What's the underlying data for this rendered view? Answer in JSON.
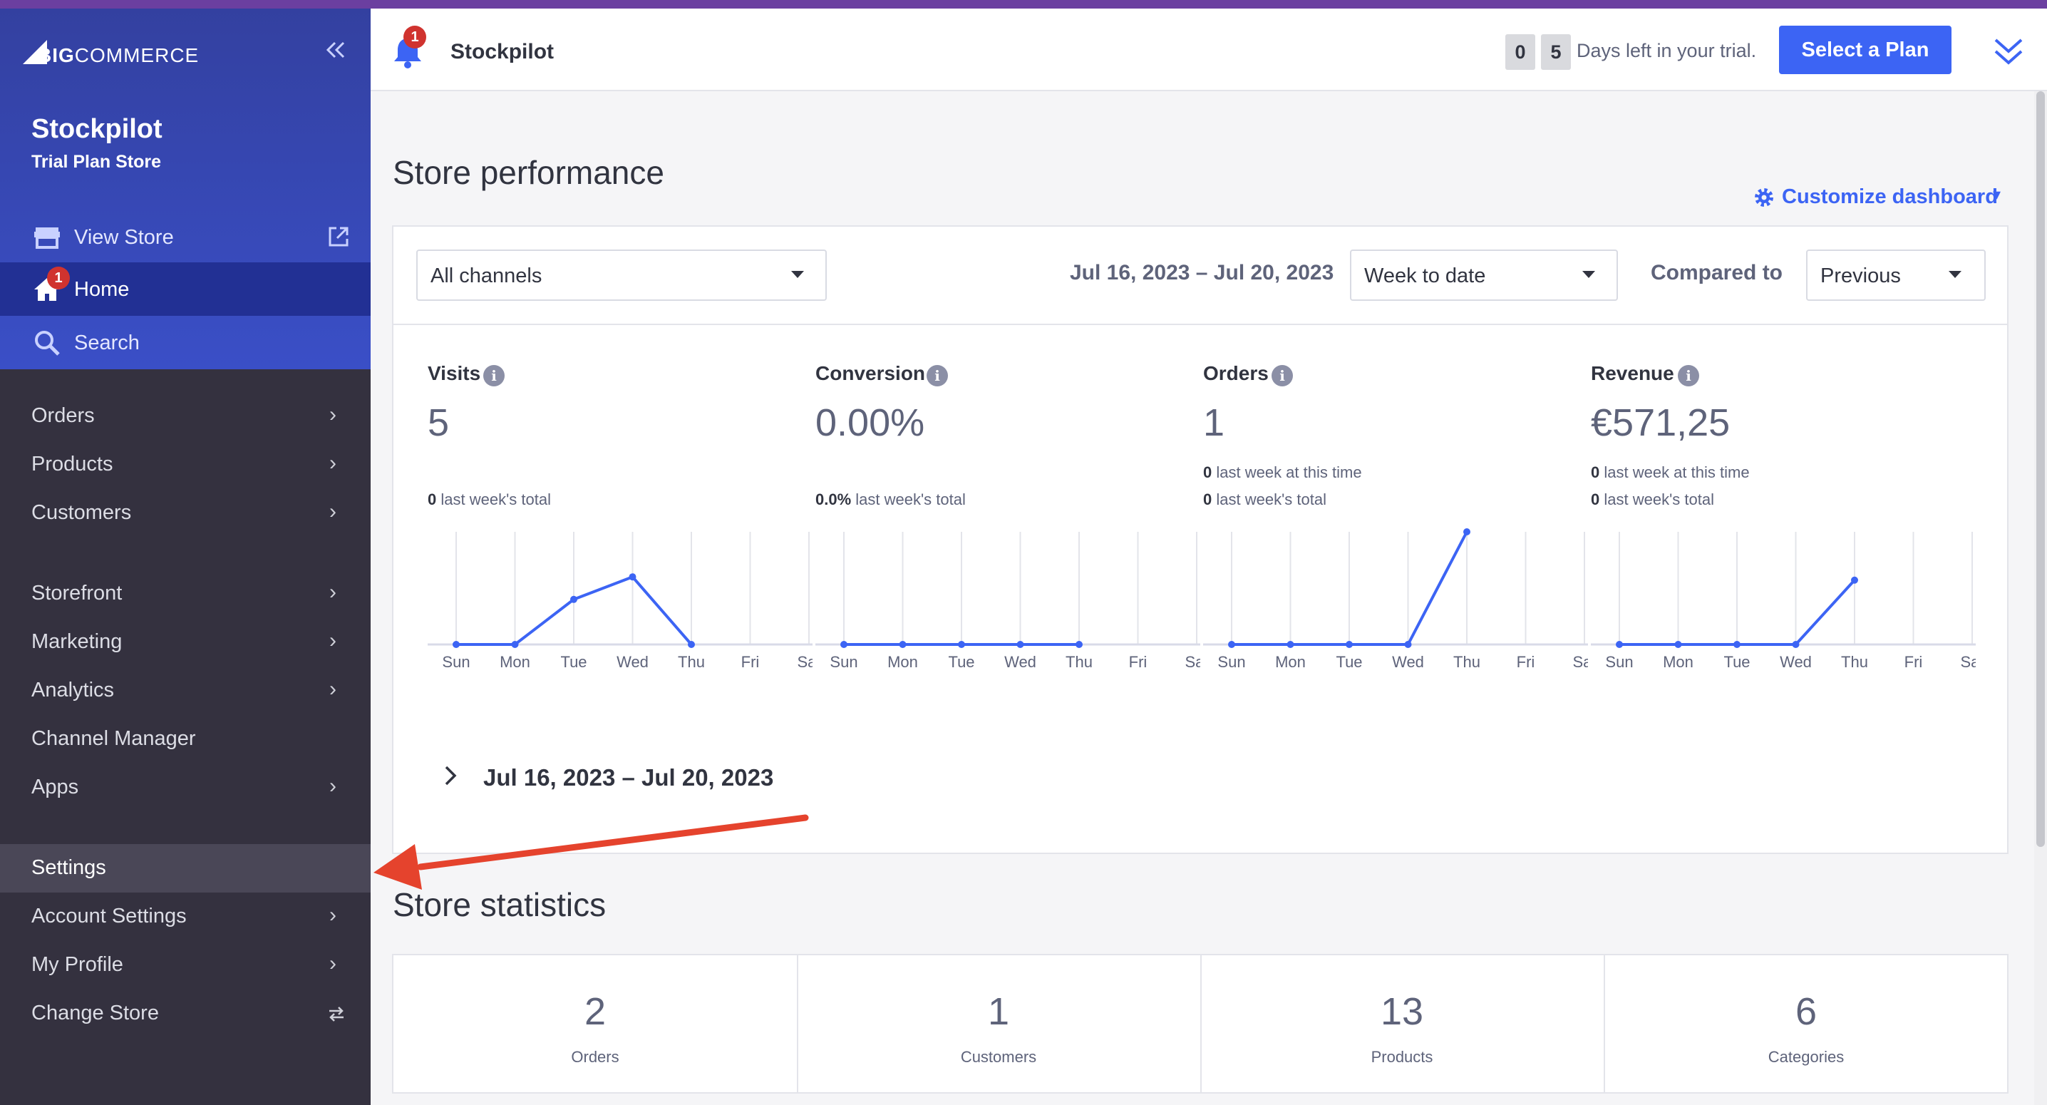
{
  "sidebar": {
    "logo_big": "BIG",
    "logo_rest": "COMMERCE",
    "store_name": "Stockpilot",
    "store_plan": "Trial Plan Store",
    "view_store": "View Store",
    "home": "Home",
    "home_badge": "1",
    "search": "Search",
    "items_group1": [
      "Orders",
      "Products",
      "Customers"
    ],
    "items_group2": [
      "Storefront",
      "Marketing",
      "Analytics",
      "Channel Manager",
      "Apps"
    ],
    "settings": "Settings",
    "items_group3": [
      "Account Settings",
      "My Profile",
      "Change Store"
    ]
  },
  "topbar": {
    "notification_count": "1",
    "store_name": "Stockpilot",
    "trial_digits": [
      "0",
      "5"
    ],
    "trial_text": "Days left in your trial.",
    "select_plan": "Select a Plan"
  },
  "performance": {
    "title": "Store performance",
    "customize": "Customize dashboard",
    "channel": "All channels",
    "date_range": "Jul 16, 2023 – Jul 20, 2023",
    "period": "Week to date",
    "compared_label": "Compared to",
    "compared_value": "Previous",
    "period_summary": "Jul 16, 2023 – Jul 20, 2023"
  },
  "metrics": [
    {
      "label": "Visits",
      "value": "5",
      "subs": [
        {
          "n": "0",
          "t": " last week's total"
        }
      ]
    },
    {
      "label": "Conversion",
      "value": "0.00%",
      "subs": [
        {
          "n": "0.0%",
          "t": " last week's total"
        }
      ]
    },
    {
      "label": "Orders",
      "value": "1",
      "subs": [
        {
          "n": "0",
          "t": " last week at this time"
        },
        {
          "n": "0",
          "t": " last week's total"
        }
      ]
    },
    {
      "label": "Revenue",
      "value": "€571,25",
      "subs": [
        {
          "n": "0",
          "t": " last week at this time"
        },
        {
          "n": "0",
          "t": " last week's total"
        }
      ]
    }
  ],
  "chart_data": [
    {
      "type": "line",
      "series_of": "Visits",
      "categories": [
        "Sun",
        "Mon",
        "Tue",
        "Wed",
        "Thu",
        "Fri",
        "Sat"
      ],
      "values": [
        0,
        0,
        2,
        3,
        0,
        null,
        null
      ],
      "ylim": [
        0,
        5
      ]
    },
    {
      "type": "line",
      "series_of": "Conversion",
      "categories": [
        "Sun",
        "Mon",
        "Tue",
        "Wed",
        "Thu",
        "Fri",
        "Sat"
      ],
      "values": [
        0,
        0,
        0,
        0,
        0,
        null,
        null
      ],
      "ylim": [
        0,
        1
      ]
    },
    {
      "type": "line",
      "series_of": "Orders",
      "categories": [
        "Sun",
        "Mon",
        "Tue",
        "Wed",
        "Thu",
        "Fri",
        "Sat"
      ],
      "values": [
        0,
        0,
        0,
        0,
        1,
        null,
        null
      ],
      "ylim": [
        0,
        1
      ]
    },
    {
      "type": "line",
      "series_of": "Revenue",
      "categories": [
        "Sun",
        "Mon",
        "Tue",
        "Wed",
        "Thu",
        "Fri",
        "Sat"
      ],
      "values": [
        0,
        0,
        0,
        0,
        571.25,
        null,
        null
      ],
      "ylim": [
        0,
        1000
      ]
    }
  ],
  "statistics": {
    "title": "Store statistics",
    "items": [
      {
        "value": "2",
        "label": "Orders"
      },
      {
        "value": "1",
        "label": "Customers"
      },
      {
        "value": "13",
        "label": "Products"
      },
      {
        "value": "6",
        "label": "Categories"
      }
    ]
  },
  "colors": {
    "accent": "#3c64f4",
    "sidebar_dark": "#34313f",
    "sidebar_head": "#33409f",
    "annotation_arrow": "#e5432d"
  }
}
